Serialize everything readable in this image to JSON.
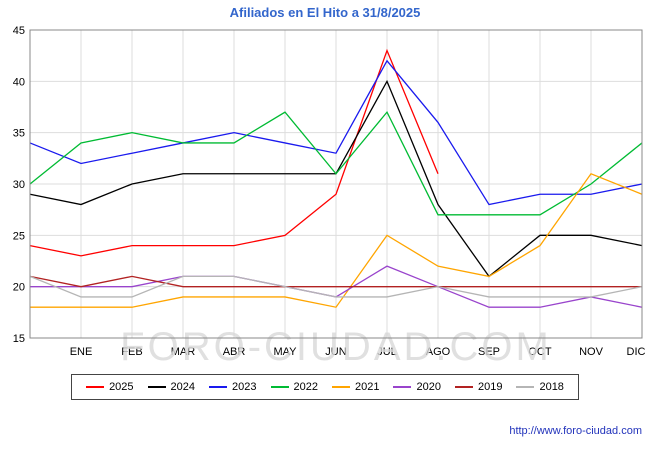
{
  "title": "Afiliados en El Hito a 31/8/2025",
  "watermark": "FORO-CIUDAD.COM",
  "footer": {
    "url": "http://www.foro-ciudad.com"
  },
  "chart_data": {
    "type": "line",
    "title": "Afiliados en El Hito a 31/8/2025",
    "xlabel": "",
    "ylabel": "",
    "ylim": [
      15,
      45
    ],
    "yticks": [
      15,
      20,
      25,
      30,
      35,
      40,
      45
    ],
    "grid": true,
    "legend_position": "bottom",
    "x_labels": [
      "",
      "ENE",
      "FEB",
      "MAR",
      "ABR",
      "MAY",
      "JUN",
      "JUL",
      "AGO",
      "SEP",
      "OCT",
      "NOV",
      "DIC"
    ],
    "series": [
      {
        "name": "2025",
        "color": "#ff0000",
        "values": [
          24,
          23,
          24,
          24,
          24,
          25,
          29,
          43,
          31,
          null,
          null,
          null,
          null
        ]
      },
      {
        "name": "2024",
        "color": "#000000",
        "values": [
          29,
          28,
          30,
          31,
          31,
          31,
          31,
          40,
          28,
          21,
          25,
          25,
          24
        ]
      },
      {
        "name": "2023",
        "color": "#1a1aee",
        "values": [
          34,
          32,
          33,
          34,
          35,
          34,
          33,
          42,
          36,
          28,
          29,
          29,
          30
        ]
      },
      {
        "name": "2022",
        "color": "#00bb33",
        "values": [
          30,
          34,
          35,
          34,
          34,
          37,
          31,
          37,
          27,
          27,
          27,
          30,
          34
        ]
      },
      {
        "name": "2021",
        "color": "#ffa500",
        "values": [
          18,
          18,
          18,
          19,
          19,
          19,
          18,
          25,
          22,
          21,
          24,
          31,
          29
        ]
      },
      {
        "name": "2020",
        "color": "#9944cc",
        "values": [
          20,
          20,
          20,
          21,
          21,
          20,
          19,
          22,
          20,
          18,
          18,
          19,
          18
        ]
      },
      {
        "name": "2019",
        "color": "#b22222",
        "values": [
          21,
          20,
          21,
          20,
          20,
          20,
          20,
          20,
          20,
          20,
          20,
          20,
          20
        ]
      },
      {
        "name": "2018",
        "color": "#b5b5b5",
        "values": [
          21,
          19,
          19,
          21,
          21,
          20,
          19,
          19,
          20,
          19,
          19,
          19,
          20
        ]
      }
    ]
  }
}
